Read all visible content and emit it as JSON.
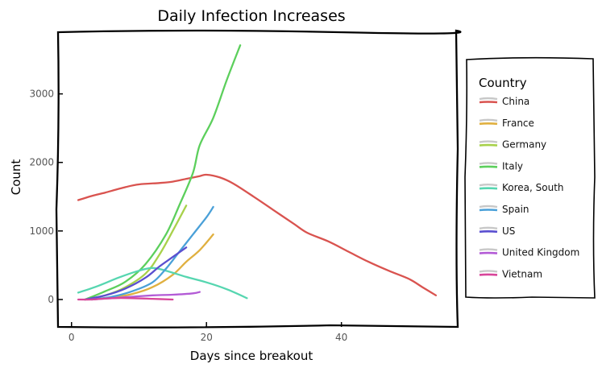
{
  "chart_data": {
    "type": "line",
    "title": "Daily Infection Increases",
    "xlabel": "Days since breakout",
    "ylabel": "Count",
    "xlim": [
      -2,
      57
    ],
    "ylim": [
      -400,
      3900
    ],
    "xticks": [
      0,
      20,
      40
    ],
    "yticks": [
      0,
      1000,
      2000,
      3000
    ],
    "grid": false,
    "legend": {
      "title": "Country",
      "placement": "right-outside"
    },
    "series": [
      {
        "name": "China",
        "color": "#d9534f",
        "x": [
          1,
          3,
          5,
          8,
          10,
          13,
          15,
          17,
          19,
          20,
          22,
          24,
          27,
          30,
          33,
          35,
          38,
          41,
          44,
          47,
          50,
          52,
          54
        ],
        "y": [
          1450,
          1510,
          1560,
          1640,
          1680,
          1700,
          1720,
          1760,
          1800,
          1820,
          1780,
          1690,
          1500,
          1300,
          1100,
          970,
          850,
          700,
          550,
          420,
          300,
          180,
          60
        ]
      },
      {
        "name": "France",
        "color": "#e0b040",
        "x": [
          3,
          6,
          9,
          12,
          15,
          17,
          19,
          21
        ],
        "y": [
          0,
          30,
          80,
          180,
          360,
          550,
          720,
          950
        ]
      },
      {
        "name": "Germany",
        "color": "#a8d14b",
        "x": [
          2,
          5,
          8,
          11,
          13,
          15,
          17
        ],
        "y": [
          0,
          60,
          180,
          380,
          650,
          1000,
          1370
        ]
      },
      {
        "name": "Italy",
        "color": "#5ccf5c",
        "x": [
          2,
          5,
          8,
          11,
          14,
          16,
          18,
          19,
          21,
          23,
          25
        ],
        "y": [
          0,
          120,
          260,
          520,
          950,
          1380,
          1850,
          2250,
          2650,
          3200,
          3710
        ]
      },
      {
        "name": "Korea, South",
        "color": "#56d6b0",
        "x": [
          1,
          4,
          7,
          10,
          12,
          14,
          17,
          20,
          23,
          26
        ],
        "y": [
          100,
          200,
          320,
          420,
          460,
          420,
          330,
          250,
          150,
          20
        ]
      },
      {
        "name": "Spain",
        "color": "#4aa0d8",
        "x": [
          3,
          6,
          9,
          12,
          14,
          16,
          18,
          20,
          21
        ],
        "y": [
          0,
          40,
          120,
          250,
          450,
          700,
          950,
          1200,
          1350
        ]
      },
      {
        "name": "US",
        "color": "#5a4fd0",
        "x": [
          2,
          5,
          8,
          11,
          13,
          15,
          17
        ],
        "y": [
          0,
          60,
          160,
          320,
          480,
          620,
          760
        ]
      },
      {
        "name": "United Kingdom",
        "color": "#b35bd6",
        "x": [
          3,
          6,
          9,
          12,
          15,
          18,
          19
        ],
        "y": [
          0,
          20,
          40,
          60,
          70,
          90,
          110
        ]
      },
      {
        "name": "Vietnam",
        "color": "#d8459a",
        "x": [
          1,
          3,
          6,
          9,
          12,
          15
        ],
        "y": [
          0,
          0,
          20,
          20,
          10,
          0
        ]
      }
    ]
  }
}
